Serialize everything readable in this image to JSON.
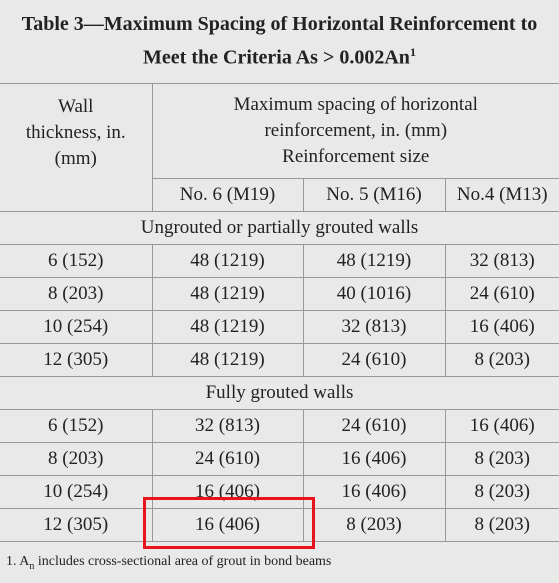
{
  "header": {
    "title": "Table 3—Maximum Spacing of Horizontal Reinforcement to Meet the Criteria As > 0.002An",
    "title_superscript": "1"
  },
  "table": {
    "wall_column": "Wall thickness, in. (mm)",
    "spacing_heading": "Maximum spacing of horizontal reinforcement, in. (mm)",
    "size_heading": "Reinforcement size",
    "columns": [
      "No. 6 (M19)",
      "No. 5 (M16)",
      "No.4 (M13)"
    ],
    "sections": [
      {
        "title": "Ungrouted or partially grouted walls",
        "rows": [
          [
            "6 (152)",
            "48 (1219)",
            "48 (1219)",
            "32 (813)"
          ],
          [
            "8 (203)",
            "48 (1219)",
            "40 (1016)",
            "24 (610)"
          ],
          [
            "10 (254)",
            "48 (1219)",
            "32 (813)",
            "16 (406)"
          ],
          [
            "12 (305)",
            "48 (1219)",
            "24 (610)",
            "8 (203)"
          ]
        ]
      },
      {
        "title": "Fully grouted walls",
        "rows": [
          [
            "6 (152)",
            "32 (813)",
            "24 (610)",
            "16 (406)"
          ],
          [
            "8 (203)",
            "24 (610)",
            "16 (406)",
            "8 (203)"
          ],
          [
            "10 (254)",
            "16 (406)",
            "16 (406)",
            "8 (203)"
          ],
          [
            "12 (305)",
            "16 (406)",
            "8 (203)",
            "8 (203)"
          ]
        ]
      }
    ]
  },
  "footnote": {
    "number": "1.",
    "symbol": "A",
    "subscript": "n",
    "text": "includes cross-sectional area of grout in bond beams"
  }
}
